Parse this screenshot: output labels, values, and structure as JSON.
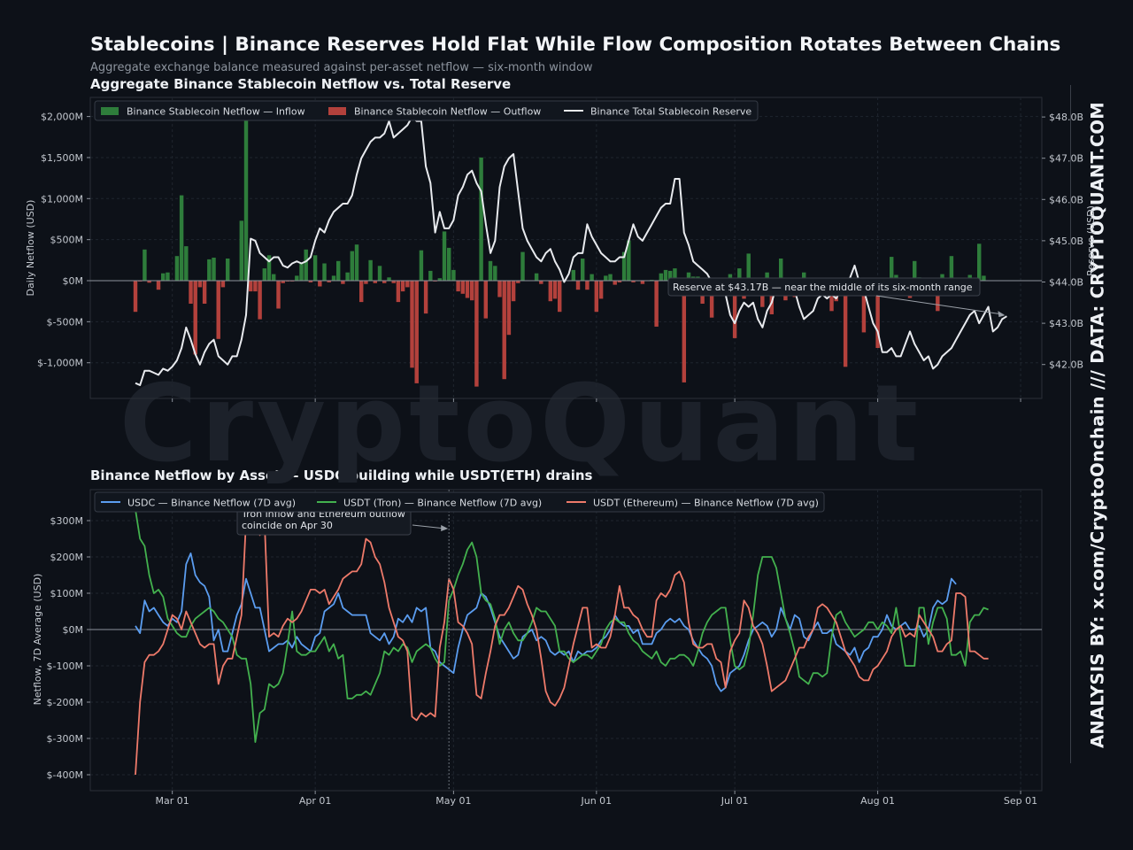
{
  "header": {
    "title": "Stablecoins  |  Binance Reserves Hold Flat While Flow Composition Rotates Between Chains",
    "subtitle": "Aggregate exchange balance measured against per-asset netflow — six-month window"
  },
  "watermark": "CryptoQuant",
  "side_credit": "ANALYSIS BY: x.com/CryptoOnchain   ///   DATA: CRYPTOQUANT.COM",
  "colors": {
    "background": "#0d1118",
    "inflow": "#2e7d3b",
    "outflow": "#b3413c",
    "reserve": "#e8eaee",
    "usdc": "#5b9df0",
    "usdt_tron": "#43b14e",
    "usdt_eth": "#ee7a6a"
  },
  "chart_data": [
    {
      "type": "bar",
      "title": "Aggregate Binance Stablecoin Netflow vs. Total Reserve",
      "ylabel": "Daily Netflow (USD)",
      "y2label": "Reserve (USD)",
      "ylim": [
        -1450,
        2000
      ],
      "y2lim": [
        41.6,
        48.3
      ],
      "yticks": [
        "$2,000M",
        "$1,500M",
        "$1,000M",
        "$500M",
        "$0M",
        "$-500M",
        "$-1,000M"
      ],
      "y2ticks": [
        "$48.0B",
        "$47.0B",
        "$46.0B",
        "$45.0B",
        "$44.0B",
        "$43.0B",
        "$42.0B"
      ],
      "xticks": [
        "Mar 01",
        "Apr 01",
        "May 01",
        "Jun 01",
        "Jul 01",
        "Aug 01",
        "Sep 01"
      ],
      "grid": true,
      "legend_position": "top-left",
      "legend": [
        "Binance Stablecoin Netflow — Inflow",
        "Binance Stablecoin Netflow — Outflow",
        "Binance Total Stablecoin Reserve"
      ],
      "annotation": "Reserve at $43.17B — near the middle of its six-month range",
      "x_start": "2025-02-21",
      "netflow": [
        -380,
        -10,
        380,
        -25,
        0,
        -110,
        90,
        100,
        0,
        300,
        1040,
        420,
        -280,
        -900,
        -80,
        -280,
        260,
        280,
        -710,
        -80,
        270,
        0,
        0,
        730,
        2000,
        -130,
        -130,
        -470,
        150,
        310,
        80,
        -340,
        -30,
        -10,
        -10,
        60,
        210,
        380,
        -20,
        310,
        -70,
        210,
        -20,
        60,
        240,
        -40,
        100,
        360,
        440,
        -260,
        -40,
        250,
        -30,
        180,
        -30,
        40,
        -30,
        -260,
        -130,
        -80,
        -1060,
        -1250,
        370,
        -400,
        120,
        -10,
        30,
        600,
        400,
        130,
        -130,
        -160,
        -210,
        -240,
        -1290,
        1500,
        -460,
        240,
        180,
        -200,
        -1200,
        -660,
        -250,
        -30,
        350,
        0,
        0,
        90,
        -40,
        0,
        -250,
        -220,
        -380,
        0,
        0,
        130,
        -110,
        270,
        -110,
        80,
        -380,
        -220,
        60,
        80,
        -50,
        -20,
        350,
        490,
        -20,
        0,
        -40,
        0,
        10,
        -560,
        90,
        130,
        120,
        150,
        -50,
        -1240,
        100,
        50,
        50,
        -280,
        0,
        -450,
        0,
        -70,
        -60,
        80,
        -700,
        150,
        -220,
        330,
        0,
        0,
        -320,
        100,
        -410,
        -130,
        270,
        -240,
        -130,
        -200,
        20,
        100,
        30,
        -150,
        -180,
        0,
        0,
        -370,
        -250,
        20,
        -1050,
        0,
        30,
        -110,
        -630,
        -120,
        0,
        -820,
        0,
        10,
        290,
        70,
        0,
        -80,
        -210,
        240,
        40,
        -110,
        0,
        30,
        -370,
        80,
        0,
        300,
        -150,
        0,
        0,
        70,
        0,
        450,
        60
      ],
      "reserve": [
        41.55,
        41.5,
        41.85,
        41.85,
        41.8,
        41.75,
        41.9,
        41.85,
        41.95,
        42.1,
        42.4,
        42.9,
        42.6,
        42.25,
        42.0,
        42.3,
        42.5,
        42.6,
        42.2,
        42.1,
        42.0,
        42.2,
        42.2,
        42.6,
        43.2,
        45.05,
        45.0,
        44.7,
        44.6,
        44.5,
        44.6,
        44.6,
        44.4,
        44.35,
        44.45,
        44.5,
        44.45,
        44.5,
        44.6,
        45.0,
        45.3,
        45.2,
        45.5,
        45.7,
        45.8,
        45.9,
        45.9,
        46.1,
        46.6,
        47.0,
        47.2,
        47.4,
        47.5,
        47.5,
        47.6,
        47.9,
        47.5,
        47.6,
        47.7,
        47.8,
        48.0,
        47.9,
        47.9,
        46.8,
        46.4,
        45.2,
        45.7,
        45.3,
        45.3,
        45.5,
        46.1,
        46.3,
        46.6,
        46.7,
        46.4,
        46.2,
        45.4,
        44.7,
        45.0,
        46.3,
        46.8,
        47.0,
        47.1,
        46.2,
        45.3,
        45.0,
        44.8,
        44.6,
        44.5,
        44.7,
        44.8,
        44.5,
        44.3,
        44.0,
        44.2,
        44.6,
        44.7,
        44.7,
        45.4,
        45.1,
        44.9,
        44.7,
        44.6,
        44.5,
        44.5,
        44.6,
        44.6,
        45.0,
        45.4,
        45.1,
        45.0,
        45.2,
        45.4,
        45.6,
        45.8,
        45.9,
        45.9,
        46.5,
        46.5,
        45.2,
        44.9,
        44.5,
        44.4,
        44.3,
        44.2,
        44.0,
        43.8,
        43.8,
        43.7,
        43.2,
        43.0,
        43.3,
        43.5,
        43.4,
        43.5,
        43.1,
        42.9,
        43.3,
        43.5,
        43.9,
        43.8,
        44.0,
        43.9,
        43.8,
        43.4,
        43.1,
        43.2,
        43.3,
        43.6,
        43.7,
        43.6,
        43.7,
        43.6,
        43.8,
        44.0,
        44.1,
        44.4,
        44.0,
        43.8,
        43.4,
        43.0,
        42.8,
        42.3,
        42.3,
        42.4,
        42.2,
        42.2,
        42.5,
        42.8,
        42.5,
        42.3,
        42.1,
        42.2,
        41.9,
        42.0,
        42.2,
        42.3,
        42.4,
        42.6,
        42.8,
        43.0,
        43.2,
        43.3,
        43.0,
        43.2,
        43.4,
        42.8,
        42.9,
        43.1,
        43.17
      ]
    },
    {
      "type": "line",
      "title": "Binance Netflow by Asset — USDC building while USDT(ETH) drains",
      "ylabel": "Netflow, 7D Average (USD)",
      "ylim": [
        -440,
        390
      ],
      "yticks": [
        "$300M",
        "$200M",
        "$100M",
        "$0M",
        "$-100M",
        "$-200M",
        "$-300M",
        "$-400M"
      ],
      "xticks": [
        "Mar 01",
        "Apr 01",
        "May 01",
        "Jun 01",
        "Jul 01",
        "Aug 01",
        "Sep 01"
      ],
      "grid": true,
      "legend_position": "top-left",
      "annotation": "Tron inflow and Ethereum outflow\ncoincide on Apr 30",
      "x_start": "2025-02-21",
      "series": [
        {
          "name": "USDC — Binance Netflow (7D avg)",
          "values": [
            10,
            -10,
            80,
            50,
            60,
            40,
            20,
            10,
            30,
            20,
            50,
            180,
            210,
            150,
            130,
            120,
            90,
            -30,
            0,
            -60,
            -60,
            -10,
            40,
            70,
            140,
            100,
            60,
            60,
            0,
            -60,
            -50,
            -40,
            -40,
            -30,
            -50,
            -20,
            -40,
            -50,
            -60,
            -20,
            -10,
            50,
            60,
            70,
            100,
            60,
            50,
            40,
            40,
            40,
            40,
            -10,
            -20,
            -30,
            -10,
            -40,
            -20,
            30,
            20,
            40,
            20,
            60,
            50,
            60,
            -50,
            -60,
            -90,
            -100,
            -110,
            -120,
            -50,
            0,
            40,
            50,
            60,
            100,
            90,
            60,
            20,
            -20,
            -40,
            -60,
            -80,
            -70,
            -20,
            -10,
            0,
            -30,
            -20,
            -30,
            -60,
            -70,
            -60,
            -70,
            -60,
            -90,
            -60,
            -70,
            -60,
            -60,
            -50,
            -30,
            -20,
            0,
            40,
            20,
            10,
            10,
            -10,
            0,
            -40,
            -40,
            -40,
            -10,
            0,
            20,
            30,
            20,
            30,
            10,
            0,
            -30,
            -50,
            -70,
            -80,
            -100,
            -150,
            -170,
            -160,
            -120,
            -110,
            -100,
            -70,
            -30,
            0,
            10,
            20,
            10,
            -20,
            0,
            60,
            30,
            0,
            40,
            30,
            -20,
            -30,
            0,
            20,
            -10,
            -10,
            0,
            -40,
            -50,
            -60,
            -70,
            -50,
            -90,
            -60,
            -50,
            -20,
            -20,
            0,
            40,
            10,
            0,
            10,
            20,
            0,
            0,
            10,
            -20,
            0,
            60,
            80,
            70,
            80,
            140,
            125
          ]
        },
        {
          "name": "USDT (Tron) — Binance Netflow (7D avg)",
          "values": [
            330,
            250,
            230,
            150,
            100,
            110,
            90,
            30,
            10,
            -10,
            -20,
            -20,
            10,
            30,
            40,
            50,
            60,
            50,
            30,
            20,
            0,
            -20,
            -70,
            -80,
            -80,
            -150,
            -310,
            -230,
            -220,
            -150,
            -160,
            -150,
            -120,
            -40,
            50,
            -60,
            -70,
            -70,
            -60,
            -60,
            -40,
            -20,
            -60,
            -40,
            -80,
            -70,
            -190,
            -190,
            -180,
            -180,
            -170,
            -180,
            -150,
            -120,
            -60,
            -70,
            -50,
            -60,
            -40,
            -50,
            -90,
            -60,
            -50,
            -40,
            -50,
            -80,
            -100,
            -90,
            80,
            110,
            150,
            180,
            220,
            240,
            200,
            100,
            80,
            70,
            30,
            -40,
            0,
            20,
            -10,
            -30,
            -30,
            -10,
            20,
            60,
            50,
            50,
            30,
            10,
            -60,
            -60,
            -80,
            -90,
            -80,
            -70,
            -70,
            -80,
            -60,
            -40,
            0,
            20,
            30,
            20,
            20,
            -10,
            -30,
            -40,
            -60,
            -70,
            -80,
            -60,
            -90,
            -100,
            -80,
            -80,
            -70,
            -70,
            -80,
            -100,
            -60,
            -10,
            20,
            40,
            50,
            60,
            60,
            -30,
            -100,
            -110,
            -100,
            -50,
            40,
            150,
            200,
            200,
            200,
            170,
            100,
            30,
            -10,
            -60,
            -130,
            -140,
            -150,
            -120,
            -120,
            -130,
            -120,
            -20,
            40,
            50,
            20,
            0,
            -20,
            -10,
            0,
            20,
            20,
            0,
            20,
            10,
            -10,
            60,
            -20,
            -100,
            -100,
            -100,
            60,
            60,
            -40,
            20,
            60,
            60,
            30,
            -70,
            -70,
            -60,
            -100,
            20,
            40,
            40,
            60,
            55
          ]
        },
        {
          "name": "USDT (Ethereum) — Binance Netflow (7D avg)",
          "values": [
            -400,
            -200,
            -90,
            -70,
            -70,
            -60,
            -40,
            0,
            40,
            30,
            0,
            50,
            20,
            -10,
            -40,
            -50,
            -40,
            -40,
            -150,
            -100,
            -80,
            -80,
            -20,
            40,
            300,
            300,
            280,
            260,
            300,
            -20,
            -10,
            -20,
            10,
            30,
            20,
            30,
            50,
            80,
            110,
            110,
            100,
            110,
            70,
            90,
            110,
            140,
            150,
            160,
            160,
            180,
            250,
            240,
            200,
            180,
            130,
            60,
            20,
            -20,
            -30,
            -60,
            -240,
            -250,
            -230,
            -240,
            -230,
            -240,
            -50,
            20,
            140,
            110,
            20,
            10,
            -10,
            -40,
            -180,
            -190,
            -120,
            -60,
            10,
            40,
            40,
            60,
            90,
            120,
            110,
            70,
            40,
            0,
            -80,
            -170,
            -200,
            -210,
            -190,
            -160,
            -100,
            -40,
            10,
            60,
            60,
            -50,
            -40,
            -50,
            -50,
            -20,
            40,
            120,
            60,
            60,
            40,
            30,
            0,
            -20,
            -20,
            80,
            100,
            90,
            110,
            150,
            160,
            130,
            20,
            -40,
            -50,
            -50,
            -40,
            -40,
            -80,
            -90,
            -160,
            -60,
            -30,
            -10,
            80,
            60,
            10,
            -10,
            -40,
            -100,
            -170,
            -160,
            -150,
            -140,
            -110,
            -80,
            -50,
            -50,
            -20,
            0,
            60,
            70,
            60,
            40,
            20,
            -20,
            -60,
            -80,
            -100,
            -130,
            -140,
            -140,
            -110,
            -100,
            -80,
            -60,
            -20,
            0,
            10,
            -20,
            -10,
            -20,
            40,
            20,
            0,
            -20,
            -60,
            -60,
            -40,
            -30,
            100,
            100,
            90,
            -60,
            -60,
            -70,
            -80,
            -80
          ]
        }
      ]
    }
  ]
}
